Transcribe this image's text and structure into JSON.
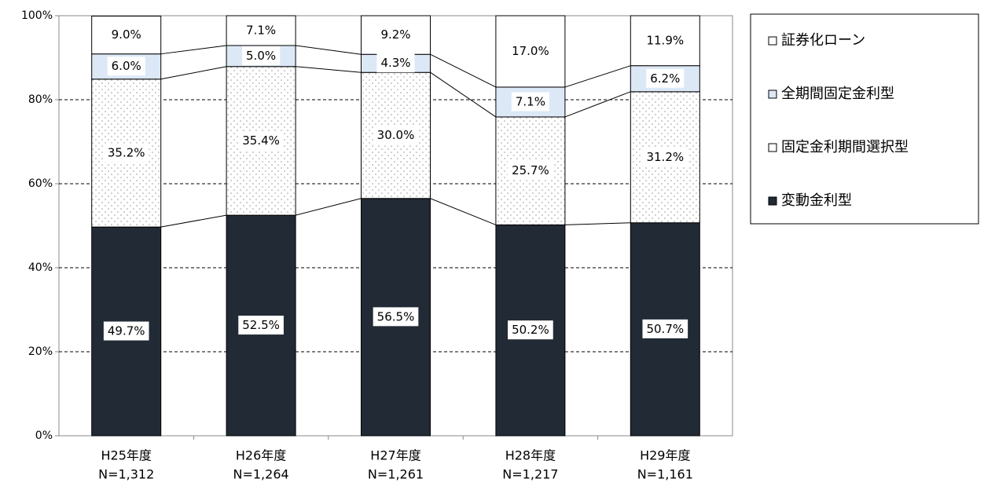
{
  "chart_data": {
    "type": "stacked_bar",
    "categories": [
      "H25年度",
      "H26年度",
      "H27年度",
      "H28年度",
      "H29年度"
    ],
    "sample_sizes": [
      "N=1,312",
      "N=1,264",
      "N=1,261",
      "N=1,217",
      "N=1,161"
    ],
    "series": [
      {
        "name": "変動金利型",
        "color": "#222a35",
        "pattern": "solid",
        "values": [
          49.7,
          52.5,
          56.5,
          50.2,
          50.7
        ],
        "value_labels": [
          "49.7%",
          "52.5%",
          "56.5%",
          "50.2%",
          "50.7%"
        ]
      },
      {
        "name": "固定金利期間選択型",
        "color": "#ffffff",
        "pattern": "dots",
        "values": [
          35.2,
          35.4,
          30.0,
          25.7,
          31.2
        ],
        "value_labels": [
          "35.2%",
          "35.4%",
          "30.0%",
          "25.7%",
          "31.2%"
        ]
      },
      {
        "name": "全期間固定金利型",
        "color": "#dce8f6",
        "pattern": "solid",
        "values": [
          6.0,
          5.0,
          4.3,
          7.1,
          6.2
        ],
        "value_labels": [
          "6.0%",
          "5.0%",
          "4.3%",
          "7.1%",
          "6.2%"
        ]
      },
      {
        "name": "証券化ローン",
        "color": "#ffffff",
        "pattern": "solid",
        "values": [
          9.0,
          7.1,
          9.2,
          17.0,
          11.9
        ],
        "value_labels": [
          "9.0%",
          "7.1%",
          "9.2%",
          "17.0%",
          "11.9%"
        ]
      }
    ],
    "ylim": [
      0,
      100
    ],
    "yticks": [
      {
        "value": 0,
        "label": "0%"
      },
      {
        "value": 20,
        "label": "20%"
      },
      {
        "value": 40,
        "label": "40%"
      },
      {
        "value": 60,
        "label": "60%"
      },
      {
        "value": 80,
        "label": "80%"
      },
      {
        "value": 100,
        "label": "100%"
      }
    ],
    "grid": true,
    "legend": "right"
  }
}
